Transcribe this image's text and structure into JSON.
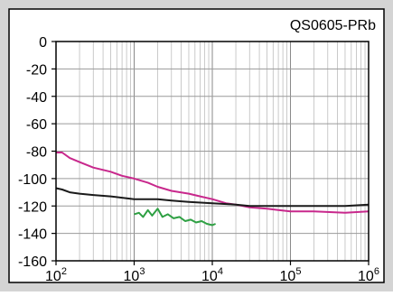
{
  "chart_data": {
    "type": "line",
    "title": "QS0605-PRb",
    "xlabel": "",
    "ylabel": "",
    "x_scale": "log",
    "xlim": [
      100,
      1000000
    ],
    "ylim": [
      -160,
      0
    ],
    "x_ticks": [
      {
        "base": "10",
        "exp": "2"
      },
      {
        "base": "10",
        "exp": "3"
      },
      {
        "base": "10",
        "exp": "4"
      },
      {
        "base": "10",
        "exp": "5"
      },
      {
        "base": "10",
        "exp": "6"
      }
    ],
    "y_ticks": [
      "0",
      "-20",
      "-40",
      "-60",
      "-80",
      "-100",
      "-120",
      "-140",
      "-160"
    ],
    "grid": true,
    "legend": "none",
    "series": [
      {
        "color": "#c8288c",
        "x": [
          100,
          120,
          150,
          200,
          300,
          500,
          700,
          1000,
          1500,
          2000,
          3000,
          5000,
          7000,
          10000,
          15000,
          20000,
          30000,
          50000,
          70000,
          100000,
          200000,
          500000,
          1000000
        ],
        "y": [
          -81,
          -81,
          -85,
          -88,
          -92,
          -95,
          -98,
          -100,
          -103,
          -106,
          -109,
          -111,
          -113,
          -115,
          -118,
          -119,
          -121,
          -122,
          -123,
          -124,
          -124,
          -125,
          -124
        ]
      },
      {
        "color": "#1a1a1a",
        "x": [
          100,
          120,
          150,
          200,
          300,
          500,
          700,
          1000,
          2000,
          3000,
          5000,
          10000,
          20000,
          30000,
          50000,
          100000,
          200000,
          500000,
          1000000
        ],
        "y": [
          -107,
          -108,
          -110,
          -111,
          -112,
          -113,
          -114,
          -115,
          -115,
          -116,
          -117,
          -118,
          -119,
          -120,
          -120,
          -120,
          -120,
          -120,
          -119
        ]
      },
      {
        "color": "#2ea043",
        "x": [
          1000,
          1150,
          1300,
          1500,
          1700,
          2000,
          2300,
          2700,
          3200,
          3800,
          4500,
          5300,
          6200,
          7300,
          8500,
          10000,
          11000
        ],
        "y": [
          -126,
          -125,
          -128,
          -123,
          -127,
          -122,
          -128,
          -126,
          -129,
          -128,
          -131,
          -130,
          -132,
          -131,
          -133,
          -134,
          -133
        ]
      }
    ]
  }
}
